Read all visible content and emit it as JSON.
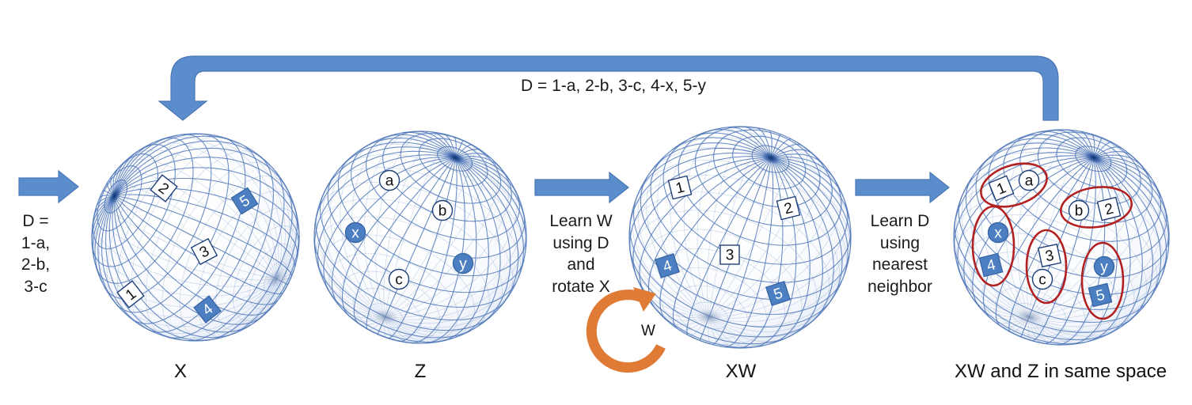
{
  "top_loop_label": "D = 1-a, 2-b, 3-c, 4-x, 5-y",
  "input_label": [
    "D =",
    "1-a,",
    "2-b,",
    "3-c"
  ],
  "step1_label": [
    "Learn W",
    "using D",
    "and",
    "rotate X"
  ],
  "step2_label": [
    "Learn D",
    "using",
    "nearest",
    "neighbor"
  ],
  "rotation_label": "W",
  "spheres": [
    {
      "caption": "X",
      "markers": [
        {
          "text": "2",
          "shape": "square",
          "filled": false
        },
        {
          "text": "5",
          "shape": "square",
          "filled": true
        },
        {
          "text": "3",
          "shape": "square",
          "filled": false
        },
        {
          "text": "1",
          "shape": "square",
          "filled": false
        },
        {
          "text": "4",
          "shape": "square",
          "filled": true
        }
      ]
    },
    {
      "caption": "Z",
      "markers": [
        {
          "text": "a",
          "shape": "circle",
          "filled": false
        },
        {
          "text": "b",
          "shape": "circle",
          "filled": false
        },
        {
          "text": "x",
          "shape": "circle",
          "filled": true
        },
        {
          "text": "y",
          "shape": "circle",
          "filled": true
        },
        {
          "text": "c",
          "shape": "circle",
          "filled": false
        }
      ]
    },
    {
      "caption": "XW",
      "markers": [
        {
          "text": "1",
          "shape": "square",
          "filled": false
        },
        {
          "text": "2",
          "shape": "square",
          "filled": false
        },
        {
          "text": "3",
          "shape": "square",
          "filled": false
        },
        {
          "text": "4",
          "shape": "square",
          "filled": true
        },
        {
          "text": "5",
          "shape": "square",
          "filled": true
        }
      ]
    },
    {
      "caption": "XW and Z in same space",
      "markers": [
        {
          "text": "1",
          "shape": "square",
          "filled": false
        },
        {
          "text": "a",
          "shape": "circle",
          "filled": false
        },
        {
          "text": "b",
          "shape": "circle",
          "filled": false
        },
        {
          "text": "2",
          "shape": "square",
          "filled": false
        },
        {
          "text": "x",
          "shape": "circle",
          "filled": true
        },
        {
          "text": "4",
          "shape": "square",
          "filled": true
        },
        {
          "text": "3",
          "shape": "square",
          "filled": false
        },
        {
          "text": "c",
          "shape": "circle",
          "filled": false
        },
        {
          "text": "y",
          "shape": "circle",
          "filled": true
        },
        {
          "text": "5",
          "shape": "square",
          "filled": true
        }
      ]
    }
  ],
  "colors": {
    "arrow": "#5b8ccb",
    "arrow_edge": "#4a78b4",
    "grid": "#4d76b8",
    "marker_fill": "#4b7fc2",
    "rotation_arrow": "#e07b35",
    "cluster_ring": "#b32020"
  }
}
